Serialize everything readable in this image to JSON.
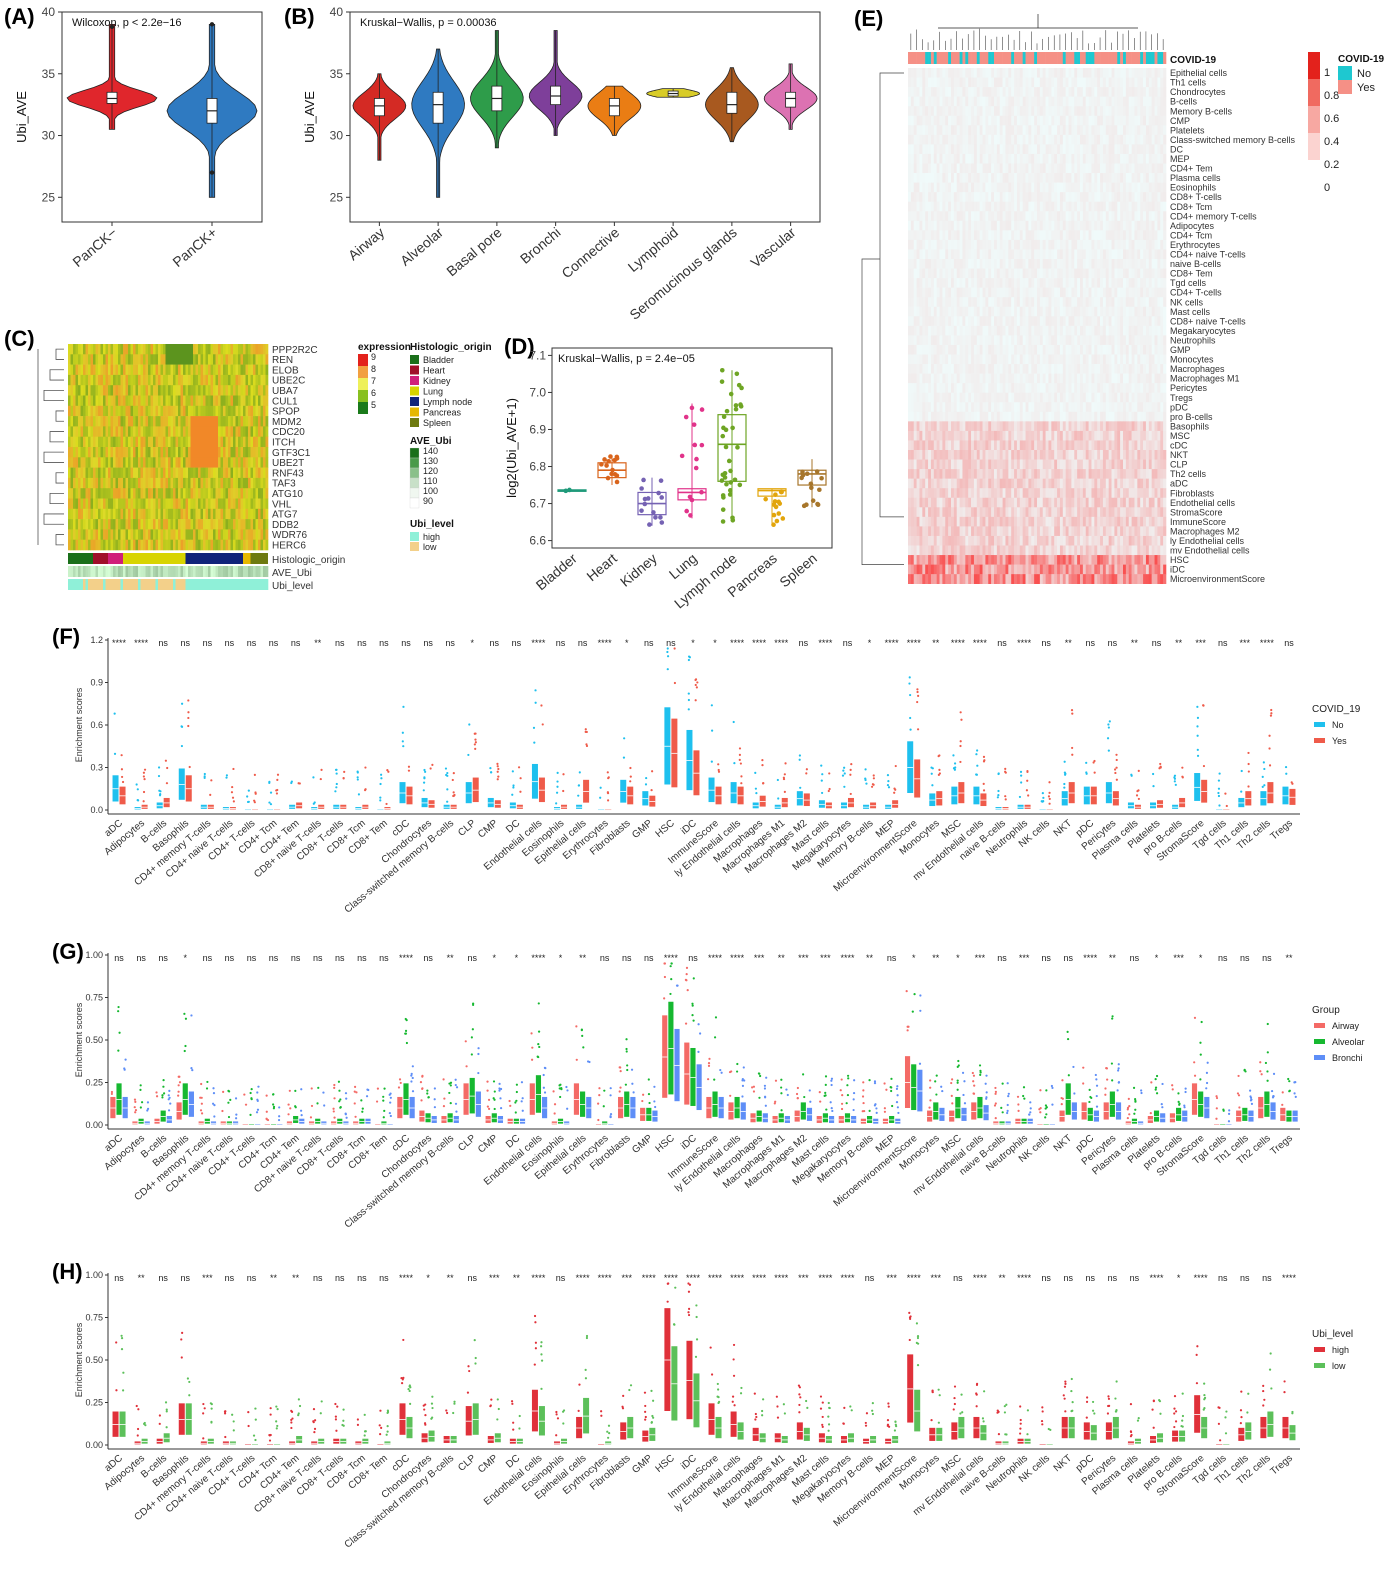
{
  "panels": {
    "A": {
      "label": "(A)"
    },
    "B": {
      "label": "(B)"
    },
    "C": {
      "label": "(C)"
    },
    "D": {
      "label": "(D)"
    },
    "E": {
      "label": "(E)"
    },
    "F": {
      "label": "(F)"
    },
    "G": {
      "label": "(G)"
    },
    "H": {
      "label": "(H)"
    }
  },
  "colors": {
    "pancknegative": "#e0262c",
    "panckpositive": "#2f7ac1",
    "covid_no": "#1ec0ee",
    "covid_yes": "#ef5b4a",
    "airway": "#f46a66",
    "alveolar": "#16b830",
    "bronchi": "#5e8ef7",
    "high": "#e0313a",
    "low": "#5cc05a"
  },
  "chart_data": [
    {
      "id": "A",
      "type": "violin",
      "annotation": "Wilcoxon, p < 2.2e−16",
      "ylabel": "Ubi_AVE",
      "ylim": [
        23,
        40
      ],
      "yticks": [
        "25",
        "30",
        "35",
        "40"
      ],
      "categories": [
        "PanCK−",
        "PanCK+"
      ],
      "stats": [
        {
          "min": 30.5,
          "q1": 32.6,
          "median": 33.0,
          "q3": 33.5,
          "max": 39.0,
          "outliers": [
            38.8
          ]
        },
        {
          "min": 25.0,
          "q1": 31.0,
          "median": 32.0,
          "q3": 33.0,
          "max": 39.0,
          "outliers": [
            39.0,
            27.0
          ]
        }
      ]
    },
    {
      "id": "B",
      "type": "violin",
      "annotation": "Kruskal−Wallis, p = 0.00036",
      "ylabel": "Ubi_AVE",
      "ylim": [
        23,
        40
      ],
      "yticks": [
        "25",
        "30",
        "35",
        "40"
      ],
      "categories": [
        "Airway",
        "Alveolar",
        "Basal pore",
        "Bronchi",
        "Connective",
        "Lymphoid",
        "Seromucinous glands",
        "Vascular"
      ],
      "colors": [
        "#d42a24",
        "#2f7ac1",
        "#2e9c4a",
        "#7e3f9a",
        "#ea7d14",
        "#d8cc28",
        "#a8591f",
        "#dc72b2"
      ],
      "stats": [
        {
          "min": 28.0,
          "q1": 31.6,
          "median": 32.4,
          "q3": 33.0,
          "max": 35.0
        },
        {
          "min": 25.0,
          "q1": 31.0,
          "median": 32.5,
          "q3": 33.5,
          "max": 37.0
        },
        {
          "min": 29.0,
          "q1": 32.0,
          "median": 33.0,
          "q3": 34.0,
          "max": 38.5
        },
        {
          "min": 30.0,
          "q1": 32.5,
          "median": 33.2,
          "q3": 34.0,
          "max": 38.5
        },
        {
          "min": 30.0,
          "q1": 31.6,
          "median": 32.4,
          "q3": 33.0,
          "max": 34.0
        },
        {
          "min": 33.1,
          "q1": 33.2,
          "median": 33.4,
          "q3": 33.6,
          "max": 33.8
        },
        {
          "min": 29.5,
          "q1": 31.8,
          "median": 32.5,
          "q3": 33.5,
          "max": 35.5
        },
        {
          "min": 30.5,
          "q1": 32.3,
          "median": 33.0,
          "q3": 33.5,
          "max": 35.8
        }
      ]
    },
    {
      "id": "C",
      "type": "heatmap",
      "genes": [
        "PPP2R2C",
        "REN",
        "ELOB",
        "UBE2C",
        "UBA7",
        "CUL1",
        "SPOP",
        "MDM2",
        "CDC20",
        "ITCH",
        "GTF3C1",
        "UBE2T",
        "RNF43",
        "TAF3",
        "ATG10",
        "VHL",
        "ATG7",
        "DDB2",
        "WDR76",
        "HERC6"
      ],
      "annotation_rows": [
        "Histologic_origin",
        "AVE_Ubi",
        "Ubi_level"
      ],
      "legend_expression": {
        "title": "expression",
        "ticks": [
          "9",
          "8",
          "7",
          "6",
          "5"
        ]
      },
      "legend_origin": {
        "title": "Histologic_origin",
        "items": [
          "Bladder",
          "Heart",
          "Kidney",
          "Lung",
          "Lymph node",
          "Pancreas",
          "Spleen"
        ],
        "colors": [
          "#1a6f1a",
          "#a0102a",
          "#d01f7a",
          "#d8d400",
          "#10237a",
          "#e6b800",
          "#6e7a10"
        ]
      },
      "legend_ave": {
        "title": "AVE_Ubi",
        "ticks": [
          "140",
          "130",
          "120",
          "110",
          "100",
          "90"
        ]
      },
      "legend_level": {
        "title": "Ubi_level",
        "items": [
          "high",
          "low"
        ],
        "colors": [
          "#8ff0d8",
          "#f3d08a"
        ]
      }
    },
    {
      "id": "D",
      "type": "box",
      "annotation": "Kruskal−Wallis, p = 2.4e−05",
      "ylabel": "log2(Ubi_AVE+1)",
      "ylim": [
        6.58,
        7.12
      ],
      "yticks": [
        "6.6",
        "6.7",
        "6.8",
        "6.9",
        "7.0",
        "7.1"
      ],
      "categories": [
        "Bladder",
        "Heart",
        "Kidney",
        "Lung",
        "Lymph node",
        "Pancreas",
        "Spleen"
      ],
      "colors": [
        "#1f9a7a",
        "#d9641c",
        "#7562b3",
        "#e1338a",
        "#6ea524",
        "#e2a50c",
        "#a7762b"
      ],
      "stats": [
        {
          "q1": 6.733,
          "median": 6.735,
          "q3": 6.737,
          "min": 6.733,
          "max": 6.737
        },
        {
          "q1": 6.77,
          "median": 6.79,
          "q3": 6.81,
          "min": 6.75,
          "max": 6.83
        },
        {
          "q1": 6.67,
          "median": 6.7,
          "q3": 6.73,
          "min": 6.64,
          "max": 6.77
        },
        {
          "q1": 6.71,
          "median": 6.73,
          "q3": 6.74,
          "min": 6.66,
          "max": 6.97
        },
        {
          "q1": 6.76,
          "median": 6.86,
          "q3": 6.94,
          "min": 6.65,
          "max": 7.06
        },
        {
          "q1": 6.72,
          "median": 6.735,
          "q3": 6.74,
          "min": 6.64,
          "max": 6.74
        },
        {
          "q1": 6.75,
          "median": 6.78,
          "q3": 6.79,
          "min": 6.69,
          "max": 6.82
        }
      ]
    },
    {
      "id": "E",
      "type": "heatmap",
      "rows": [
        "Epithelial cells",
        "Th1 cells",
        "Chondrocytes",
        "B-cells",
        "Memory B-cells",
        "CMP",
        "Platelets",
        "Class-switched memory B-cells",
        "DC",
        "MEP",
        "CD4+ Tem",
        "Plasma cells",
        "Eosinophils",
        "CD8+ T-cells",
        "CD8+ Tcm",
        "CD4+ memory T-cells",
        "Adipocytes",
        "CD4+ Tcm",
        "Erythrocytes",
        "CD4+ naive T-cells",
        "naive B-cells",
        "CD8+ Tem",
        "Tgd cells",
        "CD4+ T-cells",
        "NK cells",
        "Mast cells",
        "CD8+ naive T-cells",
        "Megakaryocytes",
        "Neutrophils",
        "GMP",
        "Monocytes",
        "Macrophages",
        "Macrophages M1",
        "Pericytes",
        "Tregs",
        "pDC",
        "pro B-cells",
        "Basophils",
        "MSC",
        "cDC",
        "NKT",
        "CLP",
        "Th2 cells",
        "aDC",
        "Fibroblasts",
        "Endothelial cells",
        "StromaScore",
        "ImmuneScore",
        "Macrophages M2",
        "ly Endothelial cells",
        "mv Endothelial cells",
        "HSC",
        "iDC",
        "MicroenvironmentScore"
      ],
      "top_annotation": "COVID-19",
      "legend_scale": [
        "1",
        "0.8",
        "0.6",
        "0.4",
        "0.2",
        "0"
      ],
      "legend_covid": {
        "title": "COVID-19",
        "items": [
          "No",
          "Yes"
        ],
        "colors": [
          "#1ec8d0",
          "#f59086"
        ]
      }
    },
    {
      "id": "F",
      "type": "box",
      "ylabel": "Enrichment scores",
      "ylim": [
        0,
        1.2
      ],
      "yticks": [
        "0.0",
        "0.3",
        "0.6",
        "0.9",
        "1.2"
      ],
      "legend": {
        "title": "COVID_19",
        "items": [
          "No",
          "Yes"
        ]
      },
      "series": [
        {
          "name": "No"
        },
        {
          "name": "Yes"
        }
      ],
      "categories": [
        "aDC",
        "Adipocytes",
        "B-cells",
        "Basophils",
        "CD4+ memory T-cells",
        "CD4+ naive T-cells",
        "CD4+ T-cells",
        "CD4+ Tcm",
        "CD4+ Tem",
        "CD8+ naive T-cells",
        "CD8+ T-cells",
        "CD8+ Tcm",
        "CD8+ Tem",
        "cDC",
        "Chondrocytes",
        "Class-switched memory B-cells",
        "CLP",
        "CMP",
        "DC",
        "Endothelial cells",
        "Eosinophils",
        "Epithelial cells",
        "Erythrocytes",
        "Fibroblasts",
        "GMP",
        "HSC",
        "iDC",
        "ImmuneScore",
        "ly Endothelial cells",
        "Macrophages",
        "Macrophages M1",
        "Macrophages M2",
        "Mast cells",
        "Megakaryocytes",
        "Memory B-cells",
        "MEP",
        "MicroenvironmentScore",
        "Monocytes",
        "MSC",
        "mv Endothelial cells",
        "naive B-cells",
        "Neutrophils",
        "NK cells",
        "NKT",
        "pDC",
        "Pericytes",
        "Plasma cells",
        "Platelets",
        "pro B-cells",
        "StromaScore",
        "Tgd cells",
        "Th1 cells",
        "Th2 cells",
        "Tregs"
      ],
      "significance": [
        "****",
        "****",
        "ns",
        "ns",
        "ns",
        "ns",
        "ns",
        "ns",
        "ns",
        "**",
        "ns",
        "ns",
        "ns",
        "ns",
        "ns",
        "ns",
        "*",
        "ns",
        "ns",
        "****",
        "ns",
        "ns",
        "****",
        "*",
        "ns",
        "ns",
        "*",
        "*",
        "****",
        "****",
        "****",
        "ns",
        "****",
        "ns",
        "*",
        "****",
        "****",
        "**",
        "****",
        "****",
        "ns",
        "****",
        "ns",
        "**",
        "ns",
        "ns",
        "**",
        "ns",
        "**",
        "***",
        "ns",
        "***",
        "****",
        "ns"
      ],
      "medians": [
        [
          0.15,
          0.01,
          0.03,
          0.18,
          0.02,
          0.01,
          0.0,
          0.0,
          0.02,
          0.01,
          0.02,
          0.01,
          0.0,
          0.12,
          0.05,
          0.02,
          0.12,
          0.05,
          0.03,
          0.2,
          0.01,
          0.02,
          0.0,
          0.13,
          0.08,
          0.45,
          0.35,
          0.14,
          0.12,
          0.03,
          0.02,
          0.08,
          0.04,
          0.03,
          0.02,
          0.02,
          0.3,
          0.07,
          0.1,
          0.1,
          0.01,
          0.02,
          0.0,
          0.08,
          0.1,
          0.12,
          0.03,
          0.03,
          0.02,
          0.16,
          0.0,
          0.05,
          0.08,
          0.1
        ],
        [
          0.1,
          0.02,
          0.05,
          0.15,
          0.02,
          0.01,
          0.0,
          0.0,
          0.03,
          0.02,
          0.02,
          0.02,
          0.01,
          0.1,
          0.04,
          0.02,
          0.14,
          0.04,
          0.02,
          0.14,
          0.02,
          0.13,
          0.0,
          0.1,
          0.06,
          0.4,
          0.26,
          0.1,
          0.1,
          0.06,
          0.05,
          0.07,
          0.03,
          0.05,
          0.03,
          0.04,
          0.22,
          0.08,
          0.12,
          0.07,
          0.01,
          0.02,
          0.0,
          0.12,
          0.1,
          0.08,
          0.02,
          0.04,
          0.05,
          0.13,
          0.0,
          0.08,
          0.12,
          0.09
        ]
      ]
    },
    {
      "id": "G",
      "type": "box",
      "ylabel": "Enrichment scores",
      "ylim": [
        0,
        1.0
      ],
      "yticks": [
        "0.00",
        "0.25",
        "0.50",
        "0.75",
        "1.00"
      ],
      "legend": {
        "title": "Group",
        "items": [
          "Airway",
          "Alveolar",
          "Bronchi"
        ]
      },
      "series": [
        {
          "name": "Airway"
        },
        {
          "name": "Alveolar"
        },
        {
          "name": "Bronchi"
        }
      ],
      "significance": [
        "ns",
        "ns",
        "ns",
        "*",
        "ns",
        "ns",
        "ns",
        "ns",
        "ns",
        "ns",
        "ns",
        "ns",
        "ns",
        "****",
        "ns",
        "**",
        "ns",
        "*",
        "*",
        "****",
        "*",
        "**",
        "ns",
        "ns",
        "ns",
        "****",
        "ns",
        "****",
        "****",
        "***",
        "**",
        "***",
        "***",
        "****",
        "**",
        "ns",
        "*",
        "**",
        "*",
        "***",
        "ns",
        "***",
        "ns",
        "ns",
        "****",
        "**",
        "ns",
        "*",
        "***",
        "*",
        "ns",
        "ns",
        "ns",
        "**"
      ],
      "medians": [
        [
          0.1,
          0.01,
          0.02,
          0.08,
          0.01,
          0.01,
          0.0,
          0.0,
          0.01,
          0.01,
          0.01,
          0.01,
          0.0,
          0.1,
          0.05,
          0.03,
          0.15,
          0.03,
          0.02,
          0.15,
          0.01,
          0.15,
          0.0,
          0.1,
          0.06,
          0.4,
          0.3,
          0.1,
          0.08,
          0.04,
          0.03,
          0.05,
          0.03,
          0.03,
          0.02,
          0.02,
          0.25,
          0.05,
          0.05,
          0.08,
          0.01,
          0.02,
          0.0,
          0.05,
          0.08,
          0.08,
          0.01,
          0.03,
          0.04,
          0.15,
          0.0,
          0.05,
          0.1,
          0.06
        ],
        [
          0.15,
          0.02,
          0.05,
          0.15,
          0.02,
          0.01,
          0.0,
          0.0,
          0.03,
          0.02,
          0.02,
          0.02,
          0.01,
          0.15,
          0.04,
          0.04,
          0.17,
          0.04,
          0.02,
          0.18,
          0.02,
          0.12,
          0.01,
          0.12,
          0.06,
          0.45,
          0.28,
          0.12,
          0.1,
          0.05,
          0.04,
          0.08,
          0.04,
          0.04,
          0.03,
          0.03,
          0.22,
          0.08,
          0.1,
          0.1,
          0.01,
          0.02,
          0.0,
          0.15,
          0.06,
          0.12,
          0.02,
          0.05,
          0.06,
          0.12,
          0.0,
          0.06,
          0.12,
          0.05
        ],
        [
          0.1,
          0.01,
          0.03,
          0.12,
          0.01,
          0.01,
          0.0,
          0.0,
          0.02,
          0.01,
          0.01,
          0.02,
          0.0,
          0.1,
          0.03,
          0.03,
          0.12,
          0.03,
          0.02,
          0.1,
          0.01,
          0.1,
          0.0,
          0.1,
          0.05,
          0.35,
          0.22,
          0.1,
          0.08,
          0.04,
          0.03,
          0.06,
          0.03,
          0.03,
          0.02,
          0.02,
          0.2,
          0.06,
          0.06,
          0.07,
          0.01,
          0.02,
          0.0,
          0.08,
          0.05,
          0.08,
          0.01,
          0.04,
          0.05,
          0.1,
          0.0,
          0.05,
          0.08,
          0.05
        ]
      ]
    },
    {
      "id": "H",
      "type": "box",
      "ylabel": "Enrichment scores",
      "ylim": [
        0,
        1.0
      ],
      "yticks": [
        "0.00",
        "0.25",
        "0.50",
        "0.75",
        "1.00"
      ],
      "legend": {
        "title": "Ubi_level",
        "items": [
          "high",
          "low"
        ]
      },
      "series": [
        {
          "name": "high"
        },
        {
          "name": "low"
        }
      ],
      "significance": [
        "ns",
        "**",
        "ns",
        "ns",
        "***",
        "ns",
        "ns",
        "**",
        "**",
        "ns",
        "ns",
        "ns",
        "ns",
        "****",
        "*",
        "**",
        "ns",
        "***",
        "**",
        "****",
        "ns",
        "****",
        "****",
        "***",
        "****",
        "****",
        "****",
        "****",
        "****",
        "****",
        "****",
        "***",
        "****",
        "****",
        "ns",
        "***",
        "****",
        "***",
        "ns",
        "****",
        "**",
        "****",
        "ns",
        "ns",
        "ns",
        "ns",
        "ns",
        "****",
        "*",
        "****",
        "ns",
        "ns",
        "ns",
        "****"
      ],
      "medians": [
        [
          0.12,
          0.01,
          0.02,
          0.15,
          0.01,
          0.01,
          0.0,
          0.0,
          0.01,
          0.01,
          0.02,
          0.01,
          0.0,
          0.15,
          0.04,
          0.03,
          0.14,
          0.03,
          0.02,
          0.2,
          0.01,
          0.1,
          0.0,
          0.08,
          0.05,
          0.5,
          0.38,
          0.15,
          0.12,
          0.06,
          0.04,
          0.08,
          0.04,
          0.03,
          0.02,
          0.02,
          0.33,
          0.06,
          0.08,
          0.1,
          0.01,
          0.02,
          0.0,
          0.1,
          0.08,
          0.08,
          0.01,
          0.03,
          0.05,
          0.18,
          0.0,
          0.06,
          0.1,
          0.1
        ],
        [
          0.12,
          0.02,
          0.04,
          0.15,
          0.02,
          0.01,
          0.0,
          0.0,
          0.03,
          0.02,
          0.02,
          0.02,
          0.01,
          0.1,
          0.05,
          0.03,
          0.15,
          0.04,
          0.02,
          0.14,
          0.02,
          0.17,
          0.01,
          0.1,
          0.06,
          0.36,
          0.26,
          0.1,
          0.08,
          0.04,
          0.03,
          0.06,
          0.03,
          0.04,
          0.03,
          0.03,
          0.2,
          0.06,
          0.1,
          0.07,
          0.01,
          0.02,
          0.0,
          0.1,
          0.07,
          0.1,
          0.02,
          0.04,
          0.05,
          0.1,
          0.0,
          0.08,
          0.12,
          0.07
        ]
      ]
    }
  ]
}
